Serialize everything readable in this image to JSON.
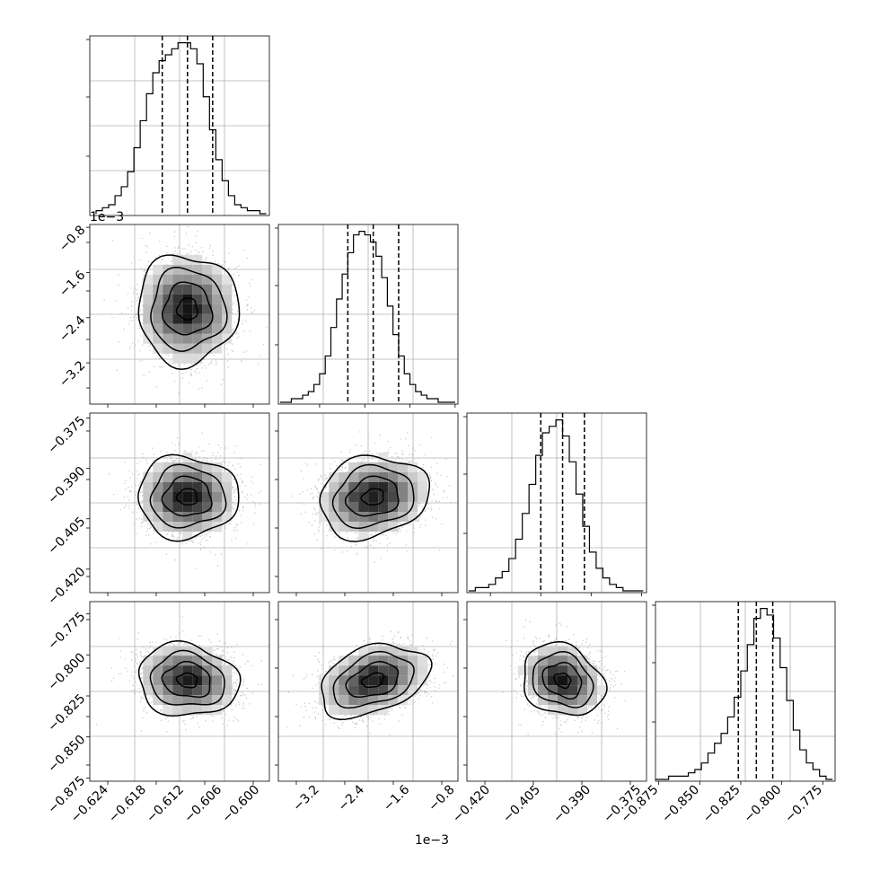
{
  "chart_data": [
    {
      "type": "histogram",
      "panel": "diag-0",
      "xlim": [
        -0.627,
        -0.5985
      ],
      "x": [
        -0.6255,
        -0.6245,
        -0.6235,
        -0.6225,
        -0.6215,
        -0.6205,
        -0.6195,
        -0.6185,
        -0.6175,
        -0.6165,
        -0.6155,
        -0.6145,
        -0.6135,
        -0.6125,
        -0.6115,
        -0.6105,
        -0.6095,
        -0.6085,
        -0.6075,
        -0.6065,
        -0.6055,
        -0.6045,
        -0.6035,
        -0.6025,
        -0.6015,
        -0.6005,
        -0.5995
      ],
      "counts": [
        1,
        2,
        3,
        6,
        9,
        14,
        22,
        31,
        40,
        47,
        51,
        53,
        55,
        57,
        57,
        55,
        50,
        39,
        28,
        18,
        11,
        6,
        3,
        2,
        1,
        1,
        0
      ],
      "quantile_lines": [
        -0.6155,
        -0.6115,
        -0.6075
      ],
      "ticks": [],
      "tick_labels": []
    },
    {
      "type": "histogram",
      "panel": "diag-1",
      "xlim": [
        -3.93,
        -0.75
      ],
      "x_scale_label": "1e−3",
      "x": [
        -3.85,
        -3.75,
        -3.65,
        -3.55,
        -3.45,
        -3.35,
        -3.25,
        -3.15,
        -3.05,
        -2.95,
        -2.85,
        -2.75,
        -2.65,
        -2.55,
        -2.45,
        -2.35,
        -2.25,
        -2.15,
        -2.05,
        -1.95,
        -1.85,
        -1.75,
        -1.65,
        -1.55,
        -1.45,
        -1.35,
        -1.25,
        -1.15,
        -1.05,
        -0.95,
        -0.85
      ],
      "counts": [
        0,
        0,
        1,
        1,
        2,
        3,
        5,
        8,
        13,
        21,
        29,
        36,
        42,
        47,
        48,
        47,
        45,
        41,
        35,
        27,
        19,
        13,
        8,
        5,
        3,
        2,
        1,
        1,
        0,
        0,
        0
      ],
      "quantile_lines": [
        -2.7,
        -2.25,
        -1.8
      ],
      "ticks": [
        -3.2,
        -2.4,
        -1.6,
        -0.8
      ],
      "tick_labels": [
        "−3.2",
        "−2.4",
        "−1.6",
        "−0.8"
      ]
    },
    {
      "type": "histogram",
      "panel": "diag-2",
      "xlim": [
        -0.427,
        -0.3735
      ],
      "x": [
        -0.4255,
        -0.4235,
        -0.4215,
        -0.4195,
        -0.4175,
        -0.4155,
        -0.4135,
        -0.4115,
        -0.4095,
        -0.4075,
        -0.4055,
        -0.4035,
        -0.4015,
        -0.3995,
        -0.3975,
        -0.3955,
        -0.3935,
        -0.3915,
        -0.3895,
        -0.3875,
        -0.3855,
        -0.3835,
        -0.3815,
        -0.3795,
        -0.3775,
        -0.3755
      ],
      "counts": [
        0,
        1,
        1,
        2,
        4,
        6,
        10,
        16,
        24,
        33,
        42,
        49,
        51,
        53,
        48,
        40,
        30,
        20,
        12,
        7,
        4,
        2,
        1,
        0,
        0,
        0
      ],
      "quantile_lines": [
        -0.405,
        -0.3985,
        -0.392
      ],
      "ticks": [
        -0.42,
        -0.405,
        -0.39,
        -0.375
      ],
      "tick_labels": [
        "−0.420",
        "−0.405",
        "−0.390",
        "−0.375"
      ]
    },
    {
      "type": "histogram",
      "panel": "diag-3",
      "xlim": [
        -0.877,
        -0.7675
      ],
      "x": [
        -0.875,
        -0.871,
        -0.867,
        -0.863,
        -0.859,
        -0.855,
        -0.851,
        -0.847,
        -0.843,
        -0.839,
        -0.835,
        -0.831,
        -0.827,
        -0.823,
        -0.819,
        -0.815,
        -0.811,
        -0.807,
        -0.803,
        -0.799,
        -0.795,
        -0.791,
        -0.787,
        -0.783,
        -0.779,
        -0.775,
        -0.771
      ],
      "counts": [
        0,
        0,
        1,
        1,
        1,
        2,
        3,
        5,
        8,
        11,
        14,
        19,
        25,
        33,
        41,
        49,
        52,
        50,
        43,
        34,
        24,
        15,
        9,
        5,
        3,
        1,
        0
      ],
      "quantile_lines": [
        -0.8265,
        -0.8155,
        -0.8055
      ],
      "ticks": [
        -0.875,
        -0.85,
        -0.825,
        -0.8,
        -0.775
      ],
      "tick_labels": [
        "−0.875",
        "−0.850",
        "−0.825",
        "−0.800",
        "−0.775"
      ]
    },
    {
      "type": "scatter",
      "panel": "pair-1-0",
      "xlim": [
        -0.627,
        -0.5985
      ],
      "ylim": [
        -3.93,
        -0.75
      ],
      "mean": [
        -0.6115,
        -2.25
      ],
      "std": [
        0.0038,
        0.46
      ],
      "rho": 0.0,
      "yticks": [
        -3.2,
        -2.4,
        -1.6,
        -0.8
      ],
      "ytick_labels": [
        "−3.2",
        "−2.4",
        "−1.6",
        "−0.8"
      ],
      "y_scale_label": "1e−3"
    },
    {
      "type": "scatter",
      "panel": "pair-2-0",
      "xlim": [
        -0.627,
        -0.5985
      ],
      "ylim": [
        -0.427,
        -0.3735
      ],
      "mean": [
        -0.6115,
        -0.3985
      ],
      "std": [
        0.0038,
        0.0058
      ],
      "rho": 0.0,
      "yticks": [
        -0.42,
        -0.405,
        -0.39,
        -0.375
      ],
      "ytick_labels": [
        "−0.420",
        "−0.405",
        "−0.390",
        "−0.375"
      ]
    },
    {
      "type": "scatter",
      "panel": "pair-2-1",
      "xlim": [
        -3.93,
        -0.75
      ],
      "ylim": [
        -0.427,
        -0.3735
      ],
      "mean": [
        -2.25,
        -0.3985
      ],
      "std": [
        0.46,
        0.0058
      ],
      "rho": 0.15
    },
    {
      "type": "scatter",
      "panel": "pair-3-0",
      "xlim": [
        -0.627,
        -0.5985
      ],
      "ylim": [
        -0.877,
        -0.7675
      ],
      "mean": [
        -0.6115,
        -0.8155
      ],
      "std": [
        0.0038,
        0.0105
      ],
      "rho": -0.1,
      "yticks": [
        -0.875,
        -0.85,
        -0.825,
        -0.8,
        -0.775
      ],
      "ytick_labels": [
        "−0.875",
        "−0.850",
        "−0.825",
        "−0.800",
        "−0.775"
      ],
      "xticks": [
        -0.624,
        -0.618,
        -0.612,
        -0.606,
        -0.6
      ],
      "xtick_labels": [
        "−0.624",
        "−0.618",
        "−0.612",
        "−0.606",
        "−0.600"
      ]
    },
    {
      "type": "scatter",
      "panel": "pair-3-1",
      "xlim": [
        -3.93,
        -0.75
      ],
      "ylim": [
        -0.877,
        -0.7675
      ],
      "mean": [
        -2.25,
        -0.8155
      ],
      "std": [
        0.46,
        0.0105
      ],
      "rho": 0.35,
      "xticks": [
        -3.2,
        -2.4,
        -1.6,
        -0.8
      ],
      "xtick_labels": [
        "−3.2",
        "−2.4",
        "−1.6",
        "−0.8"
      ],
      "x_scale_label": "1e−3"
    },
    {
      "type": "scatter",
      "panel": "pair-3-2",
      "xlim": [
        -0.427,
        -0.3735
      ],
      "ylim": [
        -0.877,
        -0.7675
      ],
      "mean": [
        -0.3985,
        -0.8155
      ],
      "std": [
        0.0058,
        0.0105
      ],
      "rho": -0.2,
      "xticks": [
        -0.42,
        -0.405,
        -0.39,
        -0.375
      ],
      "xtick_labels": [
        "−0.420",
        "−0.405",
        "−0.390",
        "−0.375"
      ]
    }
  ]
}
